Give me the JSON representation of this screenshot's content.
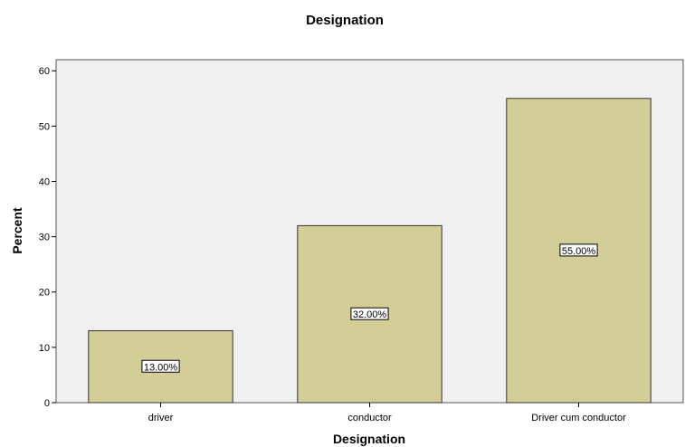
{
  "chart_data": {
    "type": "bar",
    "title": "Designation",
    "xlabel": "Designation",
    "ylabel": "Percent",
    "categories": [
      "driver",
      "conductor",
      "Driver cum conductor"
    ],
    "values": [
      13,
      32,
      55
    ],
    "data_labels": [
      "13.00%",
      "32.00%",
      "55.00%"
    ],
    "ylim": [
      0,
      62
    ],
    "yticks": [
      0,
      10,
      20,
      30,
      40,
      50,
      60
    ],
    "grid": false,
    "legend": "none",
    "colors": {
      "plot_background": "#f0f0f0",
      "bar_fill": "#d3ce97",
      "bar_stroke": "#333333",
      "label_box": "#ffffff"
    }
  }
}
